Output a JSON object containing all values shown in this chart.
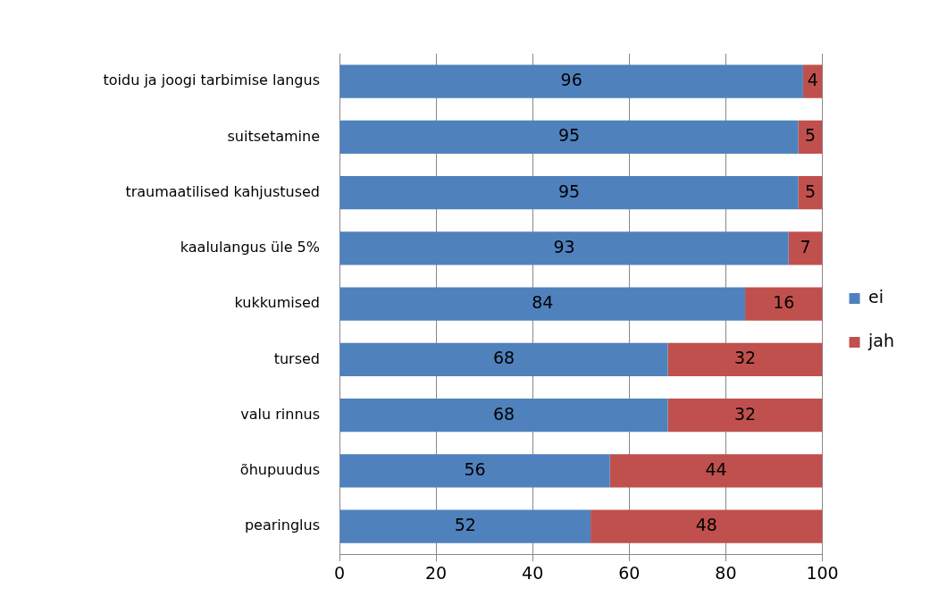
{
  "chart_data": {
    "type": "bar",
    "orientation": "horizontal",
    "stacked": true,
    "categories": [
      "toidu ja joogi tarbimise langus",
      "suitsetamine",
      "traumaatilised kahjustused",
      "kaalulangus üle 5%",
      "kukkumised",
      "tursed",
      "valu rinnus",
      "õhupuudus",
      "pearinglus"
    ],
    "series": [
      {
        "name": "ei",
        "color": "#4f81bd",
        "values": [
          96,
          95,
          95,
          93,
          84,
          68,
          68,
          56,
          52
        ]
      },
      {
        "name": "jah",
        "color": "#c0504d",
        "values": [
          4,
          5,
          5,
          7,
          16,
          32,
          32,
          44,
          48
        ]
      }
    ],
    "xlim": [
      0,
      100
    ],
    "xticks": [
      0,
      20,
      40,
      60,
      80,
      100
    ],
    "grid": "x",
    "legend": "right",
    "data_labels": true
  }
}
